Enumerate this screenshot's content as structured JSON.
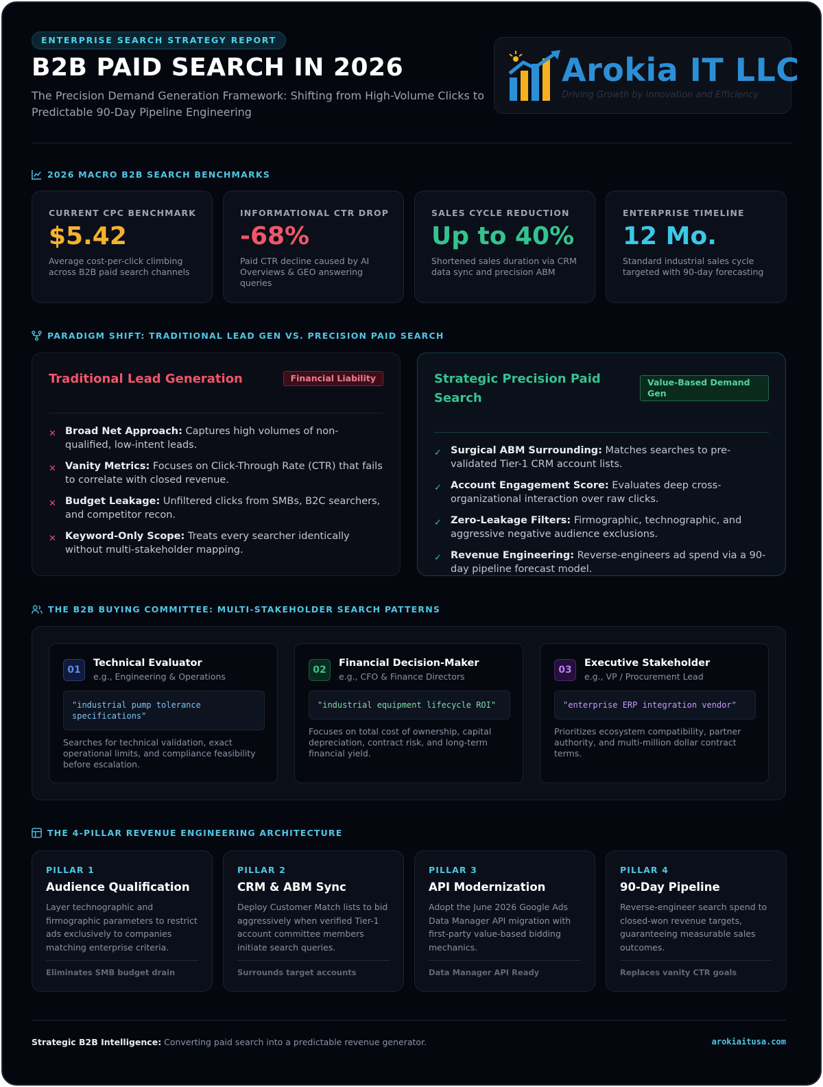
{
  "header": {
    "badge": "ENTERPRISE SEARCH STRATEGY REPORT",
    "title": "B2B PAID SEARCH IN 2026",
    "subtitle": "The Precision Demand Generation Framework: Shifting from High-Volume Clicks to Predictable 90-Day Pipeline Engineering",
    "logo": {
      "name": "Arokia IT LLC",
      "tagline": "Driving Growth by Innovation and Efficiency",
      "colors": {
        "blue": "#2c8fd6",
        "gold": "#f5b21e"
      }
    }
  },
  "benchmarks": {
    "heading": "2026 MACRO B2B SEARCH BENCHMARKS",
    "cards": [
      {
        "label": "CURRENT CPC BENCHMARK",
        "value": "$5.42",
        "desc": "Average cost-per-click climbing across B2B paid search channels",
        "color": "#f5b22e"
      },
      {
        "label": "INFORMATIONAL CTR DROP",
        "value": "-68%",
        "desc": "Paid CTR decline caused by AI Overviews & GEO answering queries",
        "color": "#f0566a"
      },
      {
        "label": "SALES CYCLE REDUCTION",
        "value": "Up to 40%",
        "desc": "Shortened sales duration via CRM data sync and precision ABM",
        "color": "#34c38f"
      },
      {
        "label": "ENTERPRISE TIMELINE",
        "value": "12 Mo.",
        "desc": "Standard industrial sales cycle targeted with 90-day forecasting",
        "color": "#3cc8e8"
      }
    ]
  },
  "paradigm": {
    "heading": "PARADIGM SHIFT: TRADITIONAL LEAD GEN VS. PRECISION PAID SEARCH",
    "traditional": {
      "title": "Traditional Lead Generation",
      "tag": "Financial Liability",
      "items": [
        {
          "bold": "Broad Net Approach:",
          "text": " Captures high volumes of non-qualified, low-intent leads."
        },
        {
          "bold": "Vanity Metrics:",
          "text": " Focuses on Click-Through Rate (CTR) that fails to correlate with closed revenue."
        },
        {
          "bold": "Budget Leakage:",
          "text": " Unfiltered clicks from SMBs, B2C searchers, and competitor recon."
        },
        {
          "bold": "Keyword-Only Scope:",
          "text": " Treats every searcher identically without multi-stakeholder mapping."
        }
      ]
    },
    "precision": {
      "title": "Strategic Precision Paid Search",
      "tag": "Value-Based Demand Gen",
      "items": [
        {
          "bold": "Surgical ABM Surrounding:",
          "text": " Matches searches to pre-validated Tier-1 CRM account lists."
        },
        {
          "bold": "Account Engagement Score:",
          "text": " Evaluates deep cross-organizational interaction over raw clicks."
        },
        {
          "bold": "Zero-Leakage Filters:",
          "text": " Firmographic, technographic, and aggressive negative audience exclusions."
        },
        {
          "bold": "Revenue Engineering:",
          "text": " Reverse-engineers ad spend via a 90-day pipeline forecast model."
        }
      ]
    }
  },
  "committee": {
    "heading": "THE B2B BUYING COMMITTEE: MULTI-STAKEHOLDER SEARCH PATTERNS",
    "personas": [
      {
        "num": "01",
        "title": "Technical Evaluator",
        "sub": "e.g., Engineering & Operations",
        "query": "\"industrial pump tolerance specifications\"",
        "desc": "Searches for technical validation, exact operational limits, and compliance feasibility before escalation.",
        "color": "#5b8def",
        "bg": "#111a3a",
        "border": "#2a3a78"
      },
      {
        "num": "02",
        "title": "Financial Decision-Maker",
        "sub": "e.g., CFO & Finance Directors",
        "query": "\"industrial equipment lifecycle ROI\"",
        "desc": "Focuses on total cost of ownership, capital depreciation, contract risk, and long-term financial yield.",
        "color": "#34c38f",
        "bg": "#0b2a1e",
        "border": "#1f5a40"
      },
      {
        "num": "03",
        "title": "Executive Stakeholder",
        "sub": "e.g., VP / Procurement Lead",
        "query": "\"enterprise ERP integration vendor\"",
        "desc": "Prioritizes ecosystem compatibility, partner authority, and multi-million dollar contract terms.",
        "color": "#b57cf2",
        "bg": "#24103a",
        "border": "#4b2478"
      }
    ]
  },
  "pillars": {
    "heading": "THE 4-PILLAR REVENUE ENGINEERING ARCHITECTURE",
    "items": [
      {
        "num": "PILLAR 1",
        "title": "Audience Qualification",
        "desc": "Layer technographic and firmographic parameters to restrict ads exclusively to companies matching enterprise criteria.",
        "foot": "Eliminates SMB budget drain"
      },
      {
        "num": "PILLAR 2",
        "title": "CRM & ABM Sync",
        "desc": "Deploy Customer Match lists to bid aggressively when verified Tier-1 account committee members initiate search queries.",
        "foot": "Surrounds target accounts"
      },
      {
        "num": "PILLAR 3",
        "title": "API Modernization",
        "desc": "Adopt the June 2026 Google Ads Data Manager API migration with first-party value-based bidding mechanics.",
        "foot": "Data Manager API Ready"
      },
      {
        "num": "PILLAR 4",
        "title": "90-Day Pipeline",
        "desc": "Reverse-engineer search spend to closed-won revenue targets, guaranteeing measurable sales outcomes.",
        "foot": "Replaces vanity CTR goals"
      }
    ]
  },
  "footer": {
    "bold": "Strategic B2B Intelligence:",
    "text": " Converting paid search into a predictable revenue generator.",
    "site": "arokiaitusa.com"
  }
}
